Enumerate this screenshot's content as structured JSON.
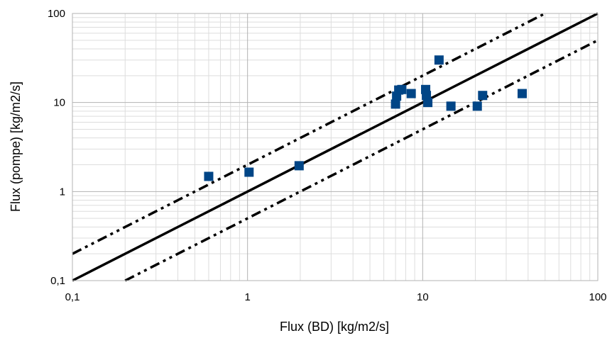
{
  "chart_data": {
    "type": "scatter",
    "title": "",
    "xlabel": "Flux (BD) [kg/m2/s]",
    "ylabel": "Flux (pompe) [kg/m2/s]",
    "xscale": "log",
    "yscale": "log",
    "xlim": [
      0.1,
      100
    ],
    "ylim": [
      0.1,
      100
    ],
    "x_ticks": [
      "0,1",
      "1",
      "10",
      "100"
    ],
    "y_ticks": [
      "0,1",
      "1",
      "10",
      "100"
    ],
    "grid": true,
    "legend": "none",
    "marker_color": "#004586",
    "series": [
      {
        "marker": "square",
        "points": [
          {
            "x": 0.6,
            "y": 1.48
          },
          {
            "x": 1.02,
            "y": 1.65
          },
          {
            "x": 1.97,
            "y": 1.95
          },
          {
            "x": 7.0,
            "y": 9.6
          },
          {
            "x": 7.1,
            "y": 11.8
          },
          {
            "x": 7.3,
            "y": 13.8
          },
          {
            "x": 7.6,
            "y": 14.0
          },
          {
            "x": 8.6,
            "y": 12.6
          },
          {
            "x": 10.4,
            "y": 14.0
          },
          {
            "x": 10.5,
            "y": 12.0
          },
          {
            "x": 10.7,
            "y": 10.0
          },
          {
            "x": 12.4,
            "y": 30.0
          },
          {
            "x": 14.5,
            "y": 9.1
          },
          {
            "x": 20.5,
            "y": 9.1
          },
          {
            "x": 22.0,
            "y": 12.0
          },
          {
            "x": 37.0,
            "y": 12.6
          }
        ]
      }
    ],
    "reference_lines": [
      {
        "style": "solid",
        "factor": 1
      },
      {
        "style": "dash-dot-dot",
        "factor": 2
      },
      {
        "style": "dash-dot-dot",
        "factor": 0.5
      }
    ]
  }
}
